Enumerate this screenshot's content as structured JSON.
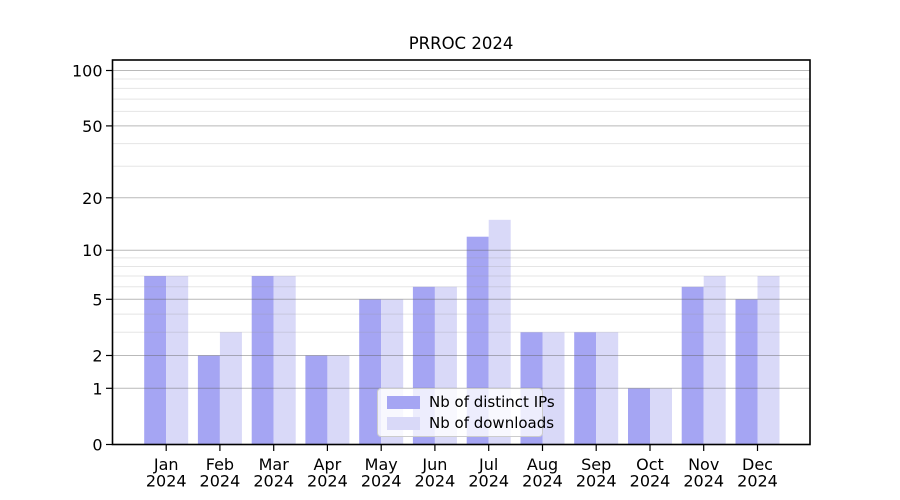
{
  "chart_data": {
    "type": "bar",
    "title": "PRROC 2024",
    "categories": [
      "Jan",
      "Feb",
      "Mar",
      "Apr",
      "May",
      "Jun",
      "Jul",
      "Aug",
      "Sep",
      "Oct",
      "Nov",
      "Dec"
    ],
    "x_tick_second_line": "2024",
    "series": [
      {
        "name": "Nb of distinct IPs",
        "color": "#a5a5f3",
        "values": [
          7,
          2,
          7,
          2,
          5,
          6,
          12,
          3,
          3,
          1,
          6,
          5
        ]
      },
      {
        "name": "Nb of downloads",
        "color": "#d9d9f8",
        "values": [
          7,
          3,
          7,
          2,
          5,
          6,
          15,
          3,
          3,
          1,
          7,
          7
        ]
      }
    ],
    "xlabel": "",
    "ylabel": "",
    "yscale": "log1p",
    "ylim": [
      0,
      114
    ],
    "yticks": [
      0,
      1,
      2,
      5,
      10,
      20,
      50,
      100
    ],
    "grid": "major gridlines at labeled ticks, faint minor gridlines at 3,4,6,7,8,9,30,40,60,70,80,90",
    "legend_position": "lower center"
  },
  "colors": {
    "axis": "#000000",
    "tick_text": "#000000",
    "major_grid": "rgba(100,100,100,0.45)",
    "minor_grid": "rgba(150,150,150,0.25)",
    "legend_border": "#cccccc",
    "legend_background": "rgba(255,255,255,0.8)"
  }
}
